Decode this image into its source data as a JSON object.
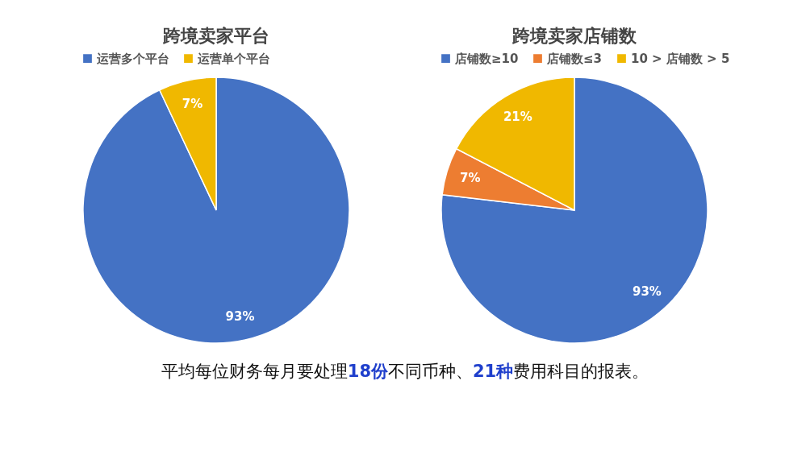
{
  "chart_data": [
    {
      "type": "pie",
      "title": "跨境卖家平台",
      "categories": [
        "运营多个平台",
        "运营单个平台"
      ],
      "values": [
        93,
        7
      ],
      "colors": [
        "#4472c4",
        "#f0b800"
      ],
      "value_labels": [
        "93%",
        "7%"
      ],
      "legend": "top"
    },
    {
      "type": "pie",
      "title": "跨境卖家店铺数",
      "categories": [
        "店铺数≥10",
        "店铺数≤3",
        "10 > 店铺数 > 5"
      ],
      "values": [
        93,
        7,
        21
      ],
      "colors": [
        "#4472c4",
        "#ed7d31",
        "#f0b800"
      ],
      "value_labels": [
        "93%",
        "7%",
        "21%"
      ],
      "legend": "top",
      "annotations": [
        "平均每位财务每月要处理18份不同币种、21种费用科目的报表。"
      ]
    }
  ]
}
